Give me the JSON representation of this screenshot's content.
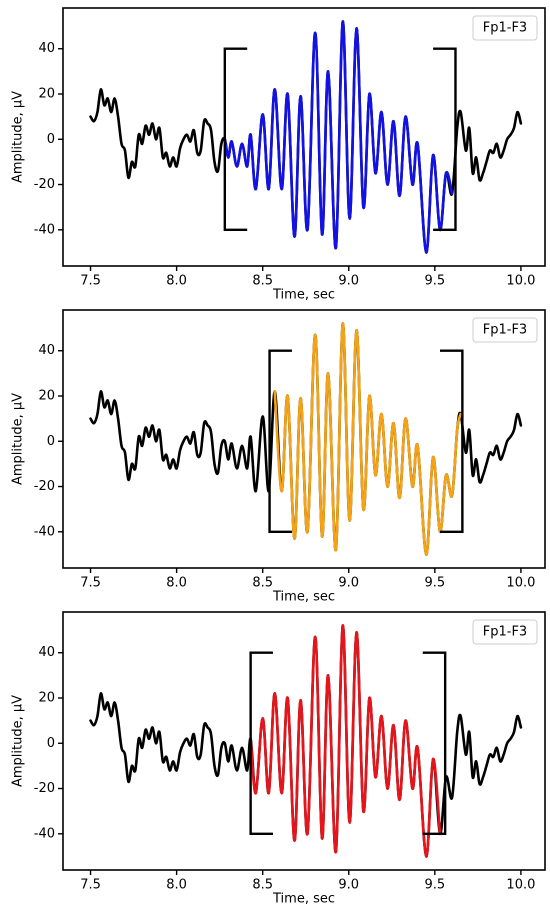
{
  "chart_data": [
    {
      "type": "line",
      "xlabel": "Time, sec",
      "ylabel": "Amplitude, μV",
      "xlim": [
        7.34,
        10.14
      ],
      "ylim": [
        -56,
        58
      ],
      "xticks": [
        7.5,
        {
          "value": 8,
          "label": "8.0"
        },
        8.5,
        {
          "value": 9,
          "label": "9.0"
        },
        9.5,
        {
          "value": 10,
          "label": "10.0"
        }
      ],
      "yticks": [
        -40,
        -20,
        0,
        20,
        40
      ],
      "legend": "upper right",
      "series": [
        {
          "name": "Fp1-F3",
          "color": "#000000",
          "x": [
            7.5,
            7.52,
            7.54,
            7.56,
            7.58,
            7.6,
            7.62,
            7.64,
            7.66,
            7.68,
            7.7,
            7.72,
            7.74,
            7.76,
            7.78,
            7.8,
            7.82,
            7.84,
            7.86,
            7.88,
            7.9,
            7.92,
            7.94,
            7.96,
            7.98,
            8.0,
            8.02,
            8.04,
            8.06,
            8.08,
            8.1,
            8.12,
            8.14,
            8.16,
            8.18,
            8.2,
            8.22,
            8.24,
            8.26,
            8.28,
            8.3,
            8.32,
            8.35,
            8.38,
            8.41,
            8.43,
            8.46,
            8.5,
            8.535,
            8.57,
            8.61,
            8.645,
            8.685,
            8.72,
            8.76,
            8.805,
            8.845,
            8.88,
            8.925,
            8.965,
            9.005,
            9.045,
            9.085,
            9.12,
            9.155,
            9.19,
            9.225,
            9.26,
            9.295,
            9.33,
            9.37,
            9.4,
            9.45,
            9.49,
            9.53,
            9.565,
            9.6,
            9.63,
            9.65,
            9.68,
            9.7,
            9.72,
            9.74,
            9.76,
            9.78,
            9.8,
            9.82,
            9.84,
            9.86,
            9.88,
            9.9,
            9.92,
            9.94,
            9.96,
            9.98,
            10.0
          ],
          "values": [
            10,
            8,
            12,
            22,
            15,
            18,
            12,
            18,
            10,
            -2,
            -5,
            -17,
            -10,
            -12,
            2,
            -2,
            6,
            2,
            7,
            0,
            5,
            -8,
            -6,
            -12,
            -8,
            -12,
            -4,
            0,
            2,
            -1,
            4,
            -6,
            -5,
            8,
            7,
            4,
            -10,
            -14,
            -2,
            0,
            -8,
            -1,
            -12,
            -2,
            -12,
            2,
            -22,
            11,
            -22,
            22,
            -22,
            20,
            -43,
            19,
            -40,
            47,
            -42,
            30,
            -48,
            52,
            -35,
            49,
            -30,
            20,
            -15,
            12,
            -20,
            8,
            -25,
            10,
            -20,
            -2,
            -50,
            -7,
            -40,
            -15,
            -24,
            5,
            12,
            -5,
            5,
            -15,
            -8,
            -18,
            -15,
            -10,
            -5,
            -6,
            -2,
            -8,
            -5,
            0,
            2,
            5,
            12,
            7
          ]
        }
      ],
      "highlight_color": "#1212e6",
      "brackets": {
        "x": [
          8.28,
          9.62
        ],
        "y": [
          -40,
          40
        ]
      }
    },
    {
      "type": "line",
      "xlabel": "Time, sec",
      "ylabel": "Amplitude, μV",
      "xlim": [
        7.34,
        10.14
      ],
      "ylim": [
        -56,
        58
      ],
      "xticks": [
        7.5,
        {
          "value": 8,
          "label": "8.0"
        },
        8.5,
        {
          "value": 9,
          "label": "9.0"
        },
        9.5,
        {
          "value": 10,
          "label": "10.0"
        }
      ],
      "yticks": [
        -40,
        -20,
        0,
        20,
        40
      ],
      "legend": "upper right",
      "series": [
        {
          "name": "Fp1-F3",
          "color": "#000000",
          "x": [
            7.5,
            7.52,
            7.54,
            7.56,
            7.58,
            7.6,
            7.62,
            7.64,
            7.66,
            7.68,
            7.7,
            7.72,
            7.74,
            7.76,
            7.78,
            7.8,
            7.82,
            7.84,
            7.86,
            7.88,
            7.9,
            7.92,
            7.94,
            7.96,
            7.98,
            8.0,
            8.02,
            8.04,
            8.06,
            8.08,
            8.1,
            8.12,
            8.14,
            8.16,
            8.18,
            8.2,
            8.22,
            8.24,
            8.26,
            8.28,
            8.3,
            8.32,
            8.35,
            8.38,
            8.41,
            8.43,
            8.46,
            8.5,
            8.535,
            8.57,
            8.61,
            8.645,
            8.685,
            8.72,
            8.76,
            8.805,
            8.845,
            8.88,
            8.925,
            8.965,
            9.005,
            9.045,
            9.085,
            9.12,
            9.155,
            9.19,
            9.225,
            9.26,
            9.295,
            9.33,
            9.37,
            9.4,
            9.45,
            9.49,
            9.53,
            9.565,
            9.6,
            9.63,
            9.65,
            9.68,
            9.7,
            9.72,
            9.74,
            9.76,
            9.78,
            9.8,
            9.82,
            9.84,
            9.86,
            9.88,
            9.9,
            9.92,
            9.94,
            9.96,
            9.98,
            10.0
          ],
          "values": [
            10,
            8,
            12,
            22,
            15,
            18,
            12,
            18,
            10,
            -2,
            -5,
            -17,
            -10,
            -12,
            2,
            -2,
            6,
            2,
            7,
            0,
            5,
            -8,
            -6,
            -12,
            -8,
            -12,
            -4,
            0,
            2,
            -1,
            4,
            -6,
            -5,
            8,
            7,
            4,
            -10,
            -14,
            -2,
            0,
            -8,
            -1,
            -12,
            -2,
            -12,
            2,
            -22,
            11,
            -22,
            22,
            -22,
            20,
            -43,
            19,
            -40,
            47,
            -42,
            30,
            -48,
            52,
            -35,
            49,
            -30,
            20,
            -15,
            12,
            -20,
            8,
            -25,
            10,
            -20,
            -2,
            -50,
            -7,
            -40,
            -15,
            -24,
            5,
            12,
            -5,
            5,
            -15,
            -8,
            -18,
            -15,
            -10,
            -5,
            -6,
            -2,
            -8,
            -5,
            0,
            2,
            5,
            12,
            7
          ]
        }
      ],
      "highlight_color": "#f5a214",
      "brackets": {
        "x": [
          8.54,
          9.66
        ],
        "y": [
          -40,
          40
        ]
      }
    },
    {
      "type": "line",
      "xlabel": "Time, sec",
      "ylabel": "Amplitude, μV",
      "xlim": [
        7.34,
        10.14
      ],
      "ylim": [
        -56,
        58
      ],
      "xticks": [
        7.5,
        {
          "value": 8,
          "label": "8.0"
        },
        8.5,
        {
          "value": 9,
          "label": "9.0"
        },
        9.5,
        {
          "value": 10,
          "label": "10.0"
        }
      ],
      "yticks": [
        -40,
        -20,
        0,
        20,
        40
      ],
      "legend": "upper right",
      "series": [
        {
          "name": "Fp1-F3",
          "color": "#000000",
          "x": [
            7.5,
            7.52,
            7.54,
            7.56,
            7.58,
            7.6,
            7.62,
            7.64,
            7.66,
            7.68,
            7.7,
            7.72,
            7.74,
            7.76,
            7.78,
            7.8,
            7.82,
            7.84,
            7.86,
            7.88,
            7.9,
            7.92,
            7.94,
            7.96,
            7.98,
            8.0,
            8.02,
            8.04,
            8.06,
            8.08,
            8.1,
            8.12,
            8.14,
            8.16,
            8.18,
            8.2,
            8.22,
            8.24,
            8.26,
            8.28,
            8.3,
            8.32,
            8.35,
            8.38,
            8.41,
            8.43,
            8.46,
            8.5,
            8.535,
            8.57,
            8.61,
            8.645,
            8.685,
            8.72,
            8.76,
            8.805,
            8.845,
            8.88,
            8.925,
            8.965,
            9.005,
            9.045,
            9.085,
            9.12,
            9.155,
            9.19,
            9.225,
            9.26,
            9.295,
            9.33,
            9.37,
            9.4,
            9.45,
            9.49,
            9.53,
            9.565,
            9.6,
            9.63,
            9.65,
            9.68,
            9.7,
            9.72,
            9.74,
            9.76,
            9.78,
            9.8,
            9.82,
            9.84,
            9.86,
            9.88,
            9.9,
            9.92,
            9.94,
            9.96,
            9.98,
            10.0
          ],
          "values": [
            10,
            8,
            12,
            22,
            15,
            18,
            12,
            18,
            10,
            -2,
            -5,
            -17,
            -10,
            -12,
            2,
            -2,
            6,
            2,
            7,
            0,
            5,
            -8,
            -6,
            -12,
            -8,
            -12,
            -4,
            0,
            2,
            -1,
            4,
            -6,
            -5,
            8,
            7,
            4,
            -10,
            -14,
            -2,
            0,
            -8,
            -1,
            -12,
            -2,
            -12,
            2,
            -22,
            11,
            -22,
            22,
            -22,
            20,
            -43,
            19,
            -40,
            47,
            -42,
            30,
            -48,
            52,
            -35,
            49,
            -30,
            20,
            -15,
            12,
            -20,
            8,
            -25,
            10,
            -20,
            -2,
            -50,
            -7,
            -40,
            -15,
            -24,
            5,
            12,
            -5,
            5,
            -15,
            -8,
            -18,
            -15,
            -10,
            -5,
            -6,
            -2,
            -8,
            -5,
            0,
            2,
            5,
            12,
            7
          ]
        }
      ],
      "highlight_color": "#e8141c",
      "brackets": {
        "x": [
          8.43,
          9.56
        ],
        "y": [
          -40,
          40
        ]
      }
    }
  ]
}
